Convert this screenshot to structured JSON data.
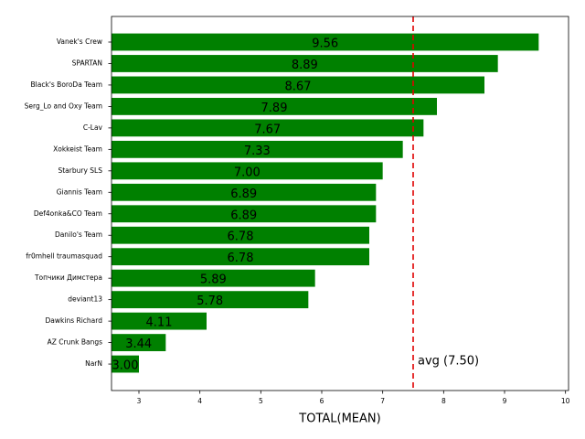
{
  "chart_data": {
    "type": "barh",
    "xlabel": "TOTAL(MEAN)",
    "categories": [
      "Vanek's Crew",
      "SPARTAN",
      "Black's BoroDa Team",
      "Serg_Lo and Oxy Team",
      "C-Lav",
      "Xokkeist Team",
      "Starbury SLS",
      "Giannis Team",
      "Def4onka&CO Team",
      "Danilo's Team",
      "fr0mhell traumasquad",
      "Топчики Димстера",
      "deviant13",
      "Dawkins Richard",
      "AZ Crunk Bangs",
      "NarN"
    ],
    "values": [
      9.56,
      8.89,
      8.67,
      7.89,
      7.67,
      7.33,
      7.0,
      6.89,
      6.89,
      6.78,
      6.78,
      5.89,
      5.78,
      4.11,
      3.44,
      3.0
    ],
    "value_labels": [
      "9.56",
      "8.89",
      "8.67",
      "7.89",
      "7.67",
      "7.33",
      "7.00",
      "6.89",
      "6.89",
      "6.78",
      "6.78",
      "5.89",
      "5.78",
      "4.11",
      "3.44",
      "3.00"
    ],
    "color": "#008000",
    "xlim": [
      2.55,
      10.05
    ],
    "xticks": [
      3,
      4,
      5,
      6,
      7,
      8,
      9,
      10
    ],
    "avg": 7.5,
    "avg_label": "avg (7.50)",
    "avg_color": "#e00000"
  }
}
